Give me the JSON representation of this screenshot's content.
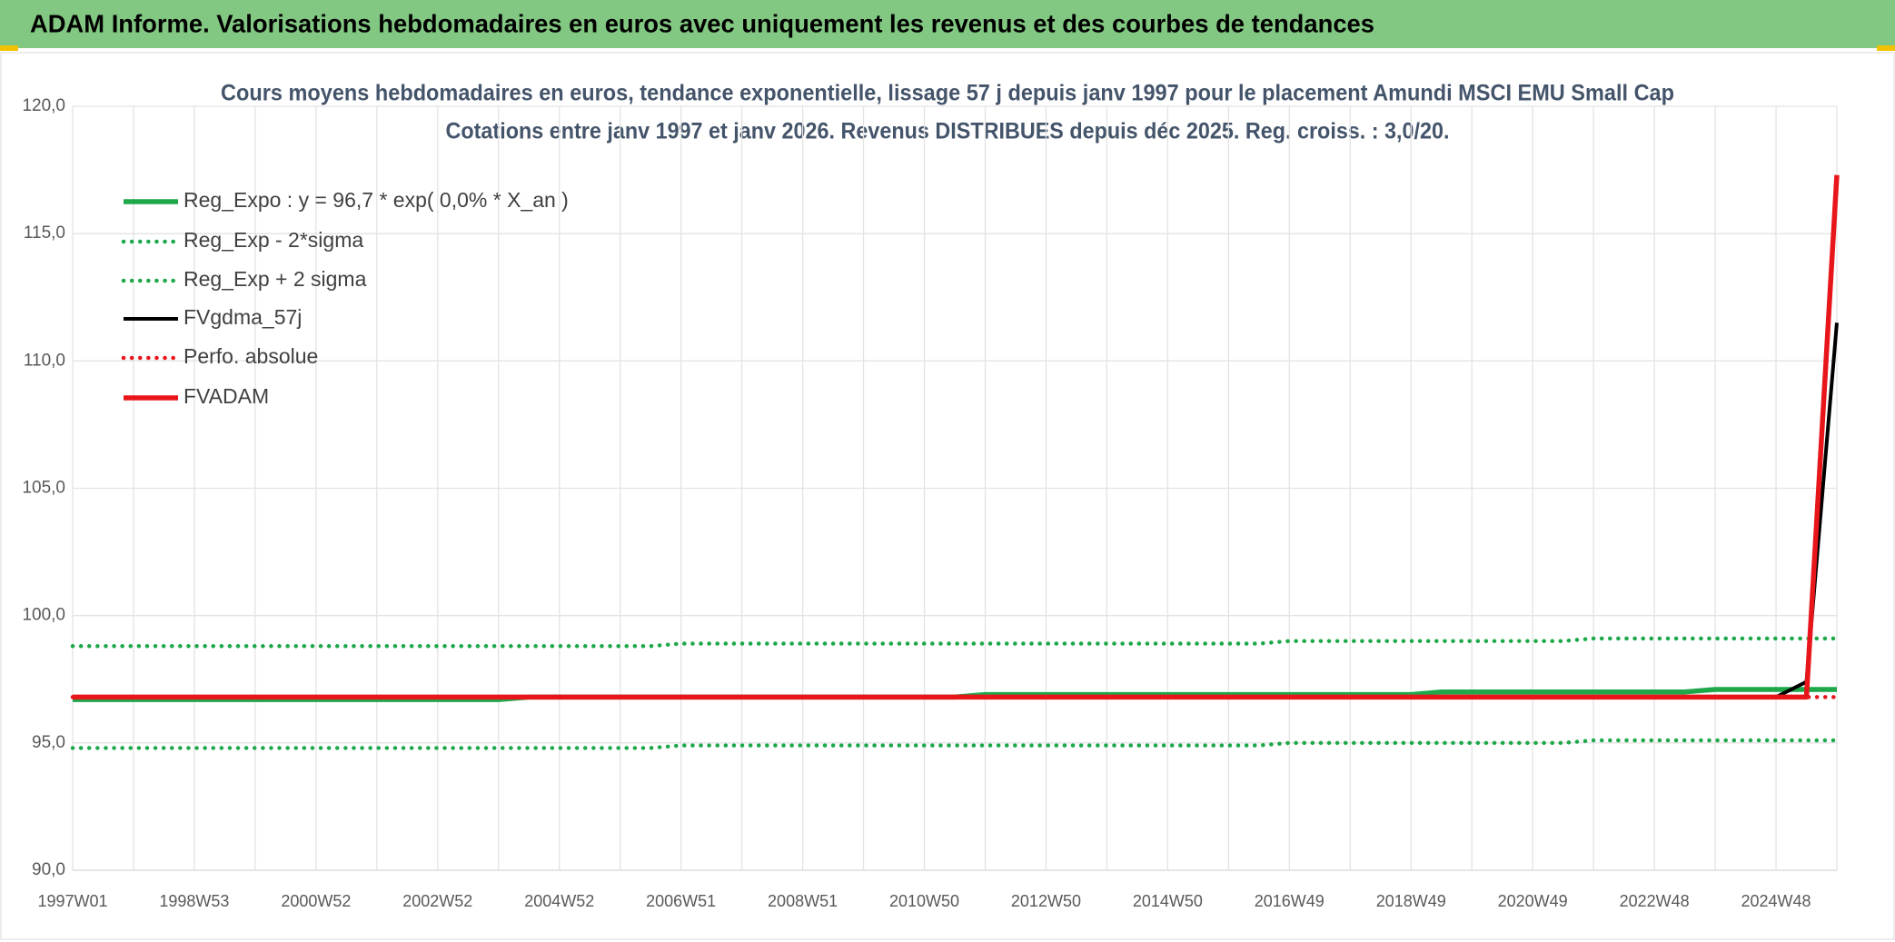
{
  "header": {
    "title": "ADAM Informe. Valorisations hebdomadaires en euros avec uniquement les revenus et des courbes de tendances"
  },
  "chart_data": {
    "type": "line",
    "title": "Cours moyens hebdomadaires en euros, tendance exponentielle, lissage 57 j depuis janv 1997 pour le placement Amundi MSCI EMU Small Cap",
    "subtitle": "Cotations entre janv 1997 et janv 2026. Revenus DISTRIBUES depuis déc 2025. Reg. croiss. : 3,0/20.",
    "categories": [
      "1997W01",
      null,
      null,
      null,
      "1998W53",
      null,
      null,
      null,
      "2000W52",
      null,
      null,
      null,
      "2002W52",
      null,
      null,
      null,
      "2004W52",
      null,
      null,
      null,
      "2006W51",
      null,
      null,
      null,
      "2008W51",
      null,
      null,
      null,
      "2010W50",
      null,
      null,
      null,
      "2012W50",
      null,
      null,
      null,
      "2014W50",
      null,
      null,
      null,
      "2016W49",
      null,
      null,
      null,
      "2018W49",
      null,
      null,
      null,
      "2020W49",
      null,
      null,
      null,
      "2022W48",
      null,
      null,
      null,
      "2024W48",
      null,
      null
    ],
    "ylim": [
      90,
      120
    ],
    "yticks": [
      {
        "value": 90,
        "label": "90,0"
      },
      {
        "value": 95,
        "label": "95,0"
      },
      {
        "value": 100,
        "label": "100,0"
      },
      {
        "value": 105,
        "label": "105,0"
      },
      {
        "value": 110,
        "label": "110,0"
      },
      {
        "value": 115,
        "label": "115,0"
      },
      {
        "value": 120,
        "label": "120,0"
      }
    ],
    "grid": true,
    "legend": "top-left",
    "series": [
      {
        "name": "Reg_Expo : y = 96,7 * exp( 0,0% *  X_an )",
        "color": "#1ea84a",
        "style": "solid",
        "values": [
          96.7,
          96.7,
          96.7,
          96.7,
          96.7,
          96.7,
          96.7,
          96.7,
          96.7,
          96.7,
          96.7,
          96.7,
          96.7,
          96.7,
          96.7,
          96.8,
          96.8,
          96.8,
          96.8,
          96.8,
          96.8,
          96.8,
          96.8,
          96.8,
          96.8,
          96.8,
          96.8,
          96.8,
          96.8,
          96.8,
          96.9,
          96.9,
          96.9,
          96.9,
          96.9,
          96.9,
          96.9,
          96.9,
          96.9,
          96.9,
          96.9,
          96.9,
          96.9,
          96.9,
          96.9,
          97.0,
          97.0,
          97.0,
          97.0,
          97.0,
          97.0,
          97.0,
          97.0,
          97.0,
          97.1,
          97.1,
          97.1,
          97.1,
          97.1
        ]
      },
      {
        "name": "Reg_Exp - 2*sigma",
        "color": "#1ea84a",
        "style": "dotted",
        "values": [
          94.8,
          94.8,
          94.8,
          94.8,
          94.8,
          94.8,
          94.8,
          94.8,
          94.8,
          94.8,
          94.8,
          94.8,
          94.8,
          94.8,
          94.8,
          94.8,
          94.8,
          94.8,
          94.8,
          94.8,
          94.9,
          94.9,
          94.9,
          94.9,
          94.9,
          94.9,
          94.9,
          94.9,
          94.9,
          94.9,
          94.9,
          94.9,
          94.9,
          94.9,
          94.9,
          94.9,
          94.9,
          94.9,
          94.9,
          94.9,
          95.0,
          95.0,
          95.0,
          95.0,
          95.0,
          95.0,
          95.0,
          95.0,
          95.0,
          95.0,
          95.1,
          95.1,
          95.1,
          95.1,
          95.1,
          95.1,
          95.1,
          95.1,
          95.1
        ]
      },
      {
        "name": "Reg_Exp + 2 sigma",
        "color": "#1ea84a",
        "style": "dotted",
        "values": [
          98.8,
          98.8,
          98.8,
          98.8,
          98.8,
          98.8,
          98.8,
          98.8,
          98.8,
          98.8,
          98.8,
          98.8,
          98.8,
          98.8,
          98.8,
          98.8,
          98.8,
          98.8,
          98.8,
          98.8,
          98.9,
          98.9,
          98.9,
          98.9,
          98.9,
          98.9,
          98.9,
          98.9,
          98.9,
          98.9,
          98.9,
          98.9,
          98.9,
          98.9,
          98.9,
          98.9,
          98.9,
          98.9,
          98.9,
          98.9,
          99.0,
          99.0,
          99.0,
          99.0,
          99.0,
          99.0,
          99.0,
          99.0,
          99.0,
          99.0,
          99.1,
          99.1,
          99.1,
          99.1,
          99.1,
          99.1,
          99.1,
          99.1,
          99.1
        ]
      },
      {
        "name": "FVgdma_57j",
        "color": "#000000",
        "style": "solid",
        "values": [
          96.8,
          96.8,
          96.8,
          96.8,
          96.8,
          96.8,
          96.8,
          96.8,
          96.8,
          96.8,
          96.8,
          96.8,
          96.8,
          96.8,
          96.8,
          96.8,
          96.8,
          96.8,
          96.8,
          96.8,
          96.8,
          96.8,
          96.8,
          96.8,
          96.8,
          96.8,
          96.8,
          96.8,
          96.8,
          96.8,
          96.8,
          96.8,
          96.8,
          96.8,
          96.8,
          96.8,
          96.8,
          96.8,
          96.8,
          96.8,
          96.8,
          96.8,
          96.8,
          96.8,
          96.8,
          96.8,
          96.8,
          96.8,
          96.8,
          96.8,
          96.8,
          96.8,
          96.8,
          96.8,
          96.8,
          96.8,
          96.8,
          97.4,
          111.5
        ]
      },
      {
        "name": "Perfo. absolue",
        "color": "#e8161b",
        "style": "dotted",
        "values": [
          96.8,
          96.8,
          96.8,
          96.8,
          96.8,
          96.8,
          96.8,
          96.8,
          96.8,
          96.8,
          96.8,
          96.8,
          96.8,
          96.8,
          96.8,
          96.8,
          96.8,
          96.8,
          96.8,
          96.8,
          96.8,
          96.8,
          96.8,
          96.8,
          96.8,
          96.8,
          96.8,
          96.8,
          96.8,
          96.8,
          96.8,
          96.8,
          96.8,
          96.8,
          96.8,
          96.8,
          96.8,
          96.8,
          96.8,
          96.8,
          96.8,
          96.8,
          96.8,
          96.8,
          96.8,
          96.8,
          96.8,
          96.8,
          96.8,
          96.8,
          96.8,
          96.8,
          96.8,
          96.8,
          96.8,
          96.8,
          96.8,
          96.8,
          96.8
        ]
      },
      {
        "name": "FVADAM",
        "color": "#e8161b",
        "style": "solid",
        "values": [
          96.8,
          96.8,
          96.8,
          96.8,
          96.8,
          96.8,
          96.8,
          96.8,
          96.8,
          96.8,
          96.8,
          96.8,
          96.8,
          96.8,
          96.8,
          96.8,
          96.8,
          96.8,
          96.8,
          96.8,
          96.8,
          96.8,
          96.8,
          96.8,
          96.8,
          96.8,
          96.8,
          96.8,
          96.8,
          96.8,
          96.8,
          96.8,
          96.8,
          96.8,
          96.8,
          96.8,
          96.8,
          96.8,
          96.8,
          96.8,
          96.8,
          96.8,
          96.8,
          96.8,
          96.8,
          96.8,
          96.8,
          96.8,
          96.8,
          96.8,
          96.8,
          96.8,
          96.8,
          96.8,
          96.8,
          96.8,
          96.8,
          96.8,
          117.3
        ]
      }
    ]
  }
}
